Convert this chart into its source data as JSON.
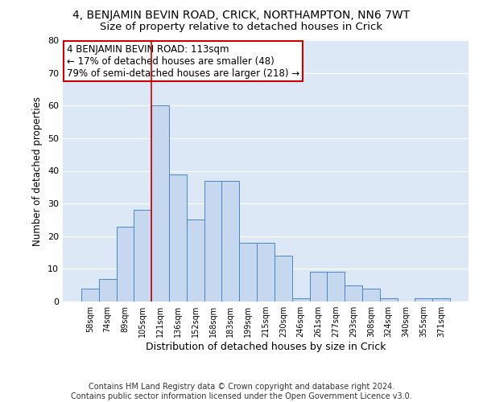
{
  "title1": "4, BENJAMIN BEVIN ROAD, CRICK, NORTHAMPTON, NN6 7WT",
  "title2": "Size of property relative to detached houses in Crick",
  "xlabel": "Distribution of detached houses by size in Crick",
  "ylabel": "Number of detached properties",
  "categories": [
    "58sqm",
    "74sqm",
    "89sqm",
    "105sqm",
    "121sqm",
    "136sqm",
    "152sqm",
    "168sqm",
    "183sqm",
    "199sqm",
    "215sqm",
    "230sqm",
    "246sqm",
    "261sqm",
    "277sqm",
    "293sqm",
    "308sqm",
    "324sqm",
    "340sqm",
    "355sqm",
    "371sqm"
  ],
  "values": [
    4,
    7,
    23,
    28,
    60,
    39,
    25,
    37,
    37,
    18,
    18,
    14,
    1,
    9,
    9,
    5,
    4,
    1,
    0,
    1,
    1
  ],
  "bar_color": "#c5d8f0",
  "bar_edge_color": "#4a86c8",
  "property_label": "4 BENJAMIN BEVIN ROAD: 113sqm",
  "pct_smaller": "17% of detached houses are smaller (48)",
  "pct_larger": "79% of semi-detached houses are larger (218)",
  "annotation_box_color": "#ffffff",
  "annotation_box_edge": "#cc0000",
  "vline_color": "#cc0000",
  "vline_x": 3.5,
  "ylim": [
    0,
    80
  ],
  "yticks": [
    0,
    10,
    20,
    30,
    40,
    50,
    60,
    70,
    80
  ],
  "grid_color": "#dce8f5",
  "bg_color": "#dce8f5",
  "footer": "Contains HM Land Registry data © Crown copyright and database right 2024.\nContains public sector information licensed under the Open Government Licence v3.0.",
  "title1_fontsize": 10,
  "title2_fontsize": 9.5,
  "xlabel_fontsize": 9,
  "ylabel_fontsize": 8.5,
  "footer_fontsize": 7,
  "annot_fontsize": 8.5
}
